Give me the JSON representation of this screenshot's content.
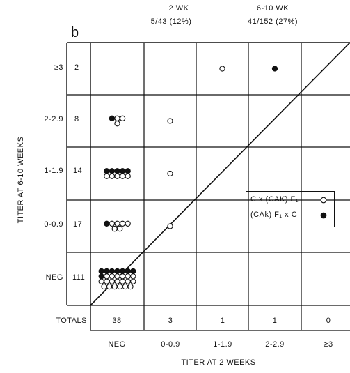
{
  "chart_data": {
    "type": "scatter",
    "panel_label": "b",
    "header": {
      "col_2wk": {
        "title": "2 WK",
        "value": "5/43 (12%)"
      },
      "col_610wk": {
        "title": "6-10 WK",
        "value": "41/152 (27%)"
      }
    },
    "xlabel": "TITER AT 2 WEEKS",
    "ylabel": "TITER AT 6-10 WEEKS",
    "x_categories": [
      "NEG",
      "0-0.9",
      "1-1.9",
      "2-2.9",
      "≥3"
    ],
    "y_categories": [
      "≥3",
      "2-2.9",
      "1-1.9",
      "0-0.9",
      "NEG"
    ],
    "row_totals": [
      "2",
      "8",
      "14",
      "17",
      "111"
    ],
    "totals_label": "TOTALS",
    "column_totals": [
      "38",
      "3",
      "1",
      "1",
      "0"
    ],
    "legend": [
      {
        "label": "C x (CAK) F₁",
        "marker": "open-circle"
      },
      {
        "label": "(CAk) F₁ x C",
        "marker": "filled-circle"
      }
    ],
    "cells": [
      {
        "x": "NEG",
        "y": "2-2.9",
        "open": 3,
        "filled": 1
      },
      {
        "x": "NEG",
        "y": "1-1.9",
        "open": 5,
        "filled": 5
      },
      {
        "x": "NEG",
        "y": "0-0.9",
        "open": 6,
        "filled": 1
      },
      {
        "x": "NEG",
        "y": "NEG",
        "open": 19,
        "filled": 8
      },
      {
        "x": "0-0.9",
        "y": "2-2.9",
        "open": 1,
        "filled": 0
      },
      {
        "x": "0-0.9",
        "y": "1-1.9",
        "open": 1,
        "filled": 0
      },
      {
        "x": "0-0.9",
        "y": "0-0.9",
        "open": 1,
        "filled": 0
      },
      {
        "x": "1-1.9",
        "y": "≥3",
        "open": 1,
        "filled": 0
      },
      {
        "x": "2-2.9",
        "y": "≥3",
        "open": 0,
        "filled": 1
      }
    ],
    "diagonal_line": true,
    "colors": {
      "ink": "#111111",
      "background": "#ffffff"
    }
  }
}
